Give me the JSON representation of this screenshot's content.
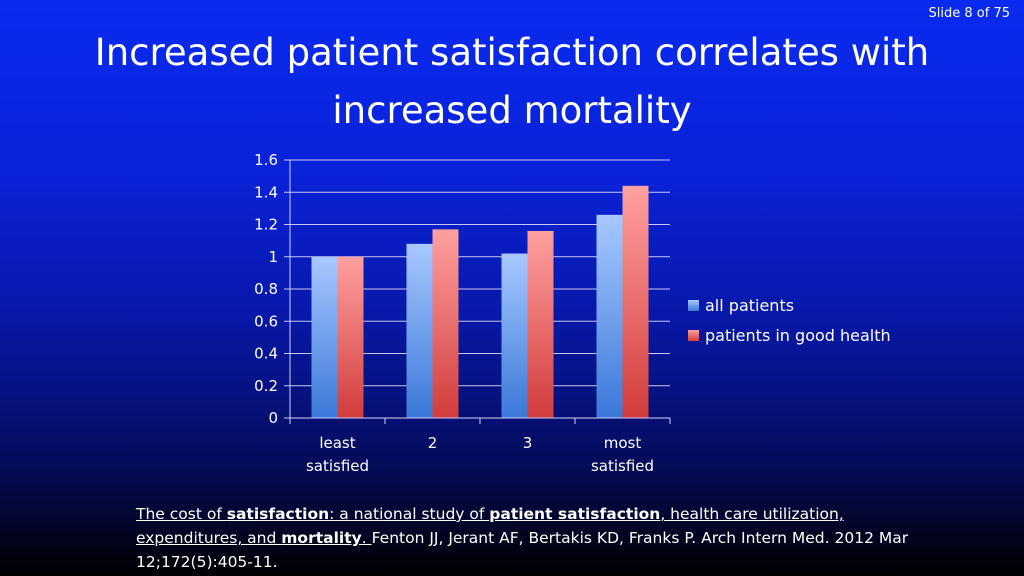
{
  "slide": {
    "counter": "Slide 8 of 75"
  },
  "title": {
    "line1": "Increased patient satisfaction correlates with",
    "line2": "increased mortality"
  },
  "colors": {
    "series1": "#5b94e8",
    "series2": "#e05050"
  },
  "chart_data": {
    "type": "bar",
    "title": "",
    "xlabel": "",
    "ylabel": "",
    "ylim": [
      0,
      1.6
    ],
    "yticks": [
      "0",
      "0.2",
      "0.4",
      "0.6",
      "0.8",
      "1",
      "1.2",
      "1.4",
      "1.6"
    ],
    "categories": [
      [
        "least",
        "satisfied"
      ],
      [
        "2"
      ],
      [
        "3"
      ],
      [
        "most",
        "satisfied"
      ]
    ],
    "series": [
      {
        "name": "all patients",
        "values": [
          1.0,
          1.08,
          1.02,
          1.26
        ]
      },
      {
        "name": "patients in good health",
        "values": [
          1.0,
          1.17,
          1.16,
          1.44
        ]
      }
    ],
    "grid": true,
    "legend_position": "right"
  },
  "citation": {
    "part1": "The cost of ",
    "part2": "satisfaction",
    "part3": ": a national study of ",
    "part4": "patient satisfaction",
    "part5": ", health care utilization, expenditures, and ",
    "part6": "mortality",
    "part7": ". ",
    "part8": "Fenton JJ, Jerant AF, Bertakis KD, Franks P. Arch Intern Med. 2012 Mar 12;172(5):405-11."
  }
}
